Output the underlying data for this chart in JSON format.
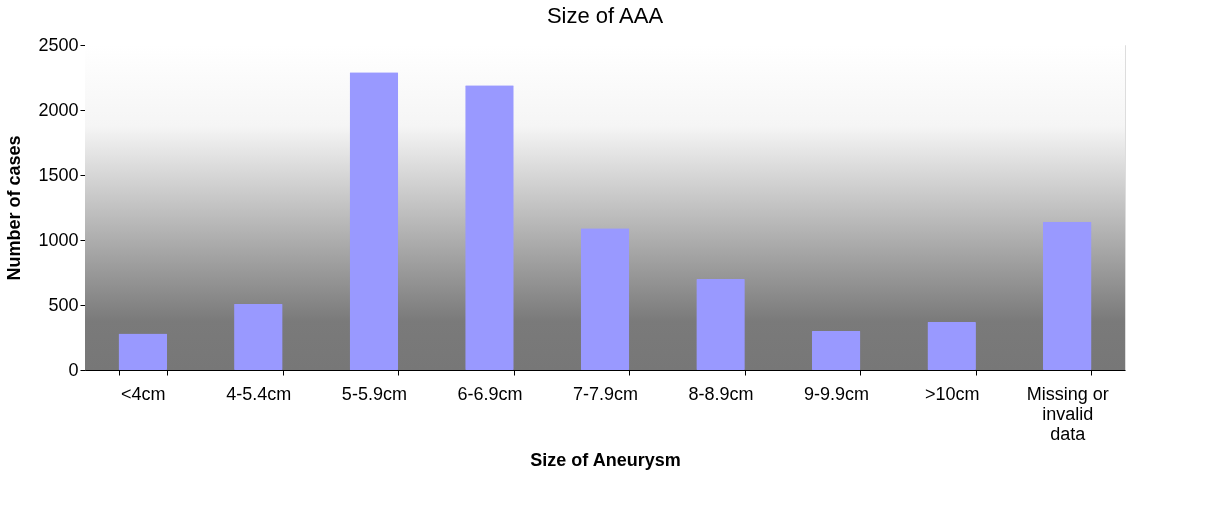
{
  "chart_data": {
    "type": "bar",
    "title": "Size of AAA",
    "xlabel": "Size of Aneurysm",
    "ylabel": "Number of cases",
    "categories": [
      "<4cm",
      "4-5.4cm",
      "5-5.9cm",
      "6-6.9cm",
      "7-7.9cm",
      "8-8.9cm",
      "9-9.9cm",
      ">10cm",
      "Missing or invalid data"
    ],
    "values": [
      280,
      510,
      2290,
      2190,
      1090,
      700,
      300,
      370,
      1140
    ],
    "color": "#9999ff",
    "ylim": [
      0,
      2500
    ],
    "yticks": [
      0,
      500,
      1000,
      1500,
      2000,
      2500
    ]
  }
}
